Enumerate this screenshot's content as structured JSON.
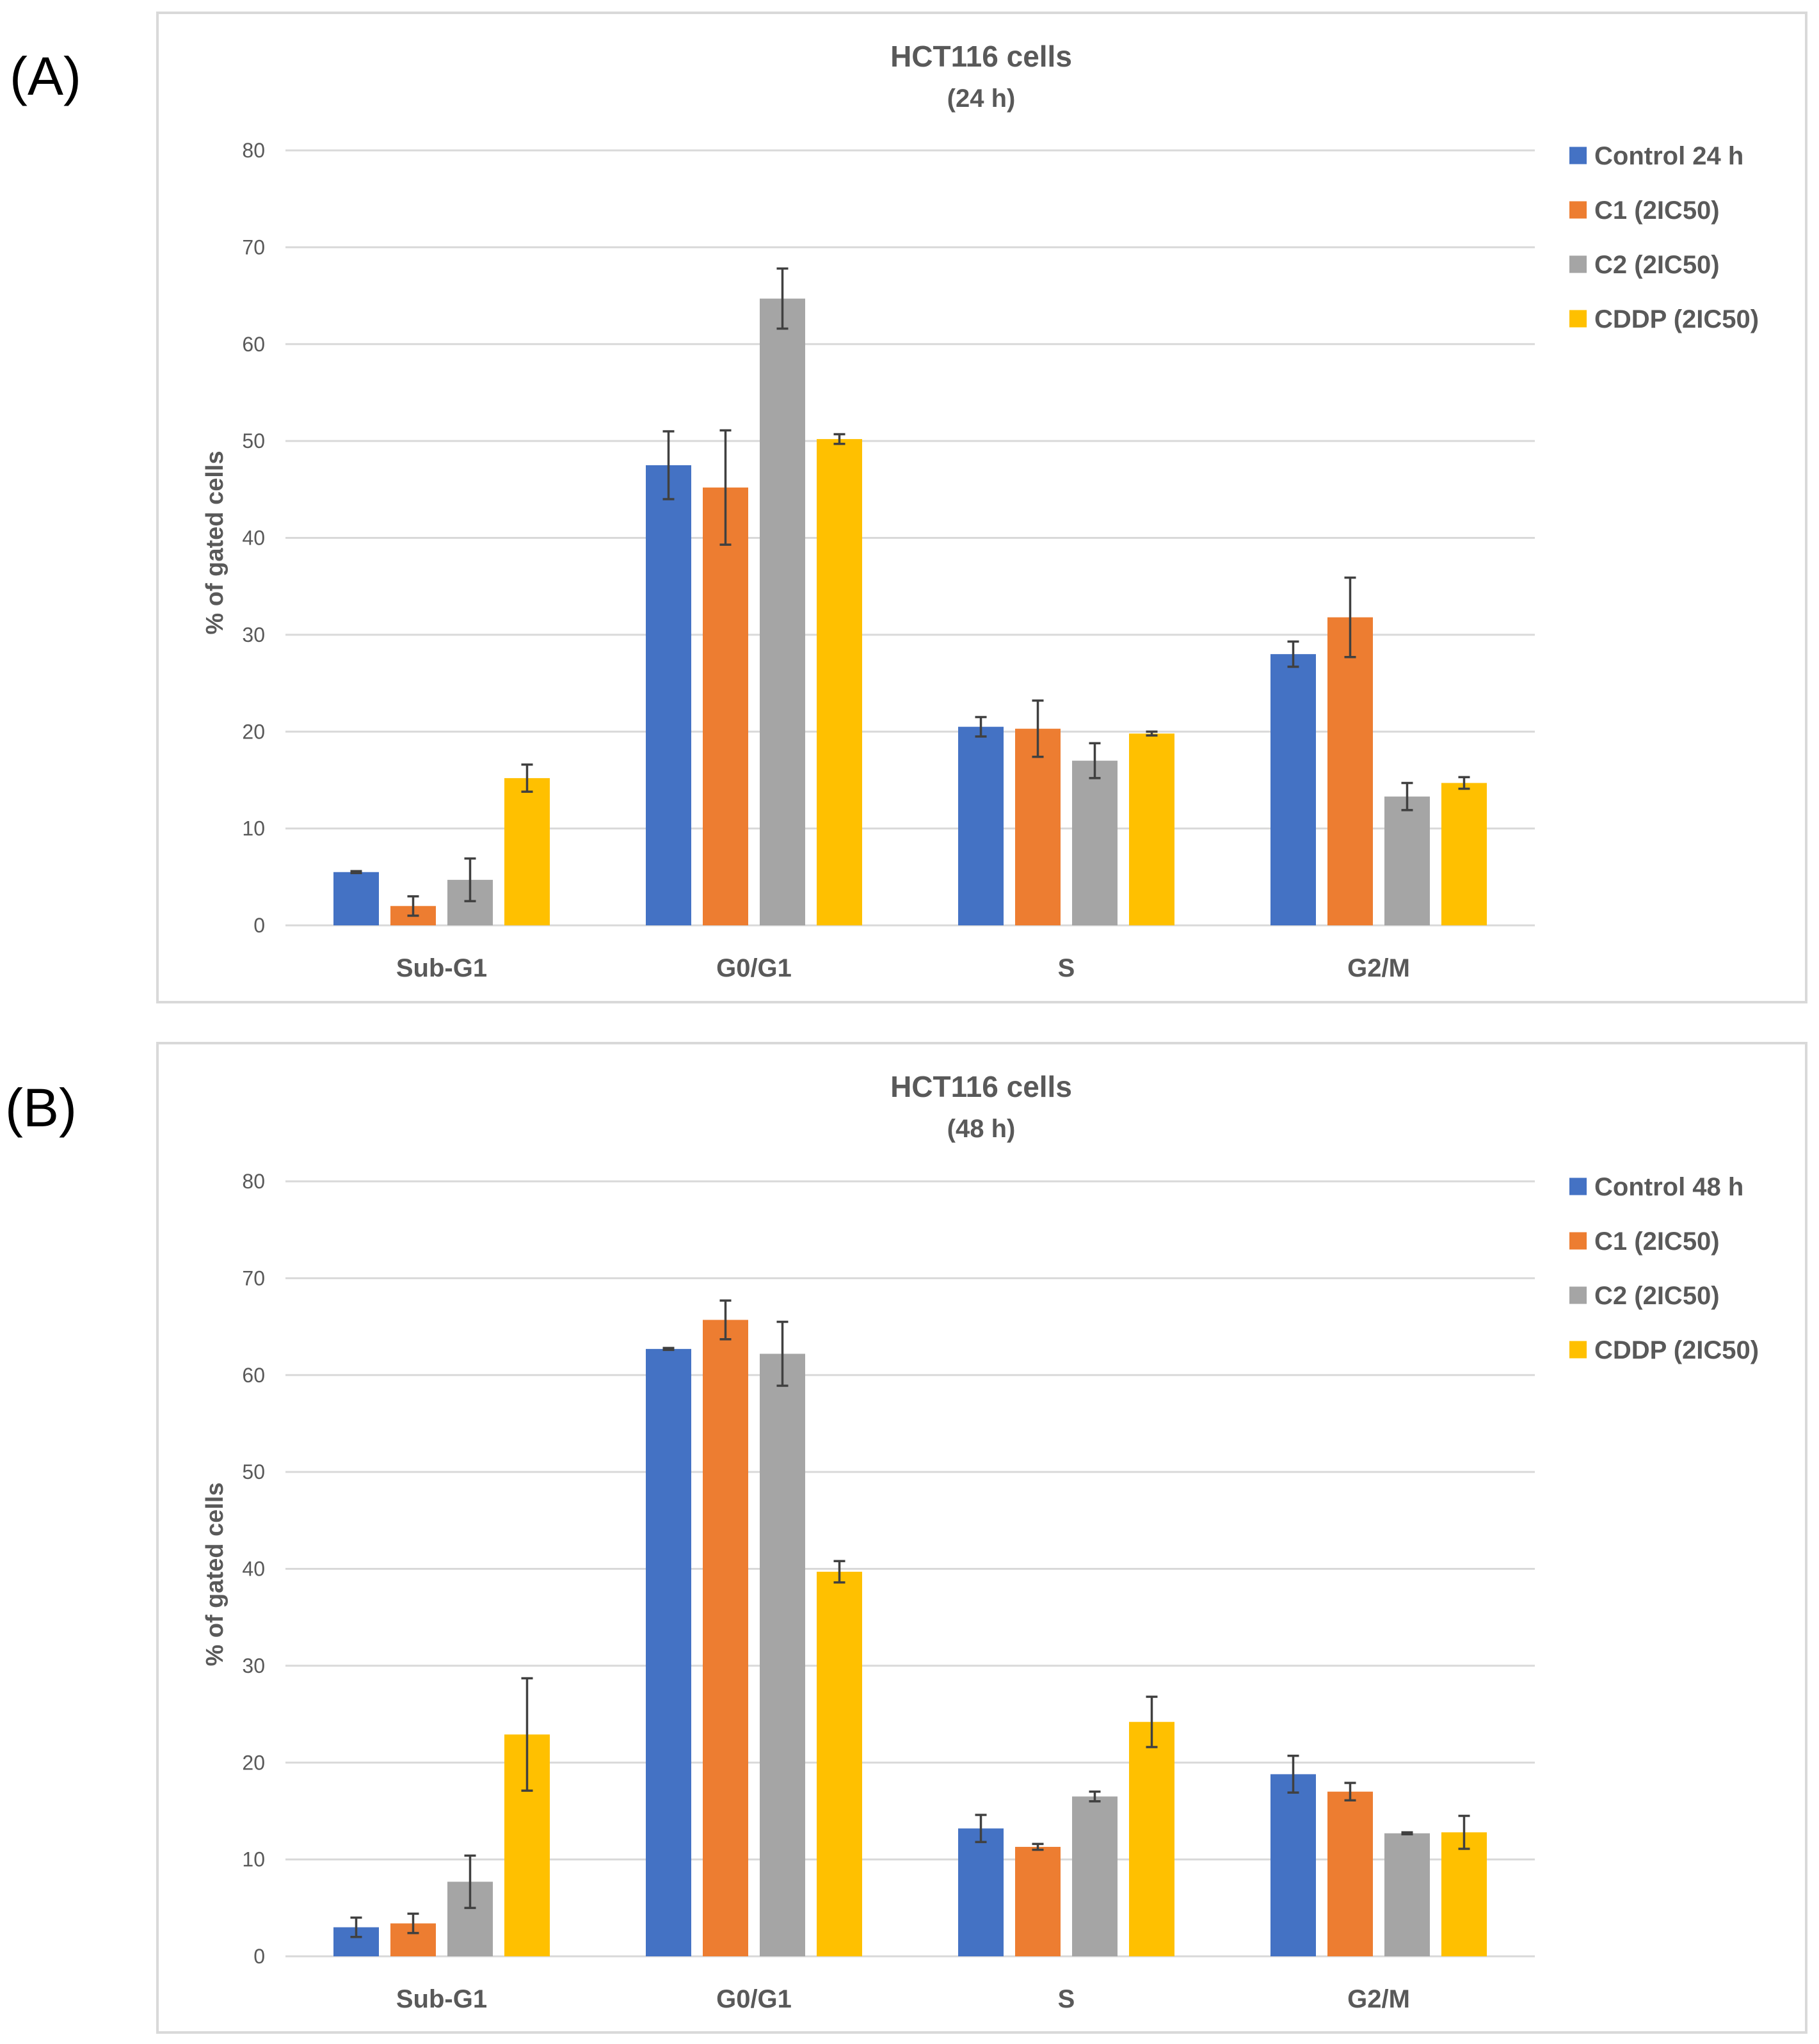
{
  "panels": [
    {
      "label": "(A)"
    },
    {
      "label": "(B)"
    }
  ],
  "chart_data": [
    {
      "type": "bar",
      "title": "HCT116 cells",
      "subtitle": "(24 h)",
      "xlabel": "",
      "ylabel": "% of gated cells",
      "ylim": [
        0,
        80
      ],
      "yticks": [
        0,
        10,
        20,
        30,
        40,
        50,
        60,
        70,
        80
      ],
      "grid": true,
      "legend_position": "right",
      "categories": [
        "Sub-G1",
        "G0/G1",
        "S",
        "G2/M"
      ],
      "series": [
        {
          "name": "Control 24 h",
          "color": "#4472c4",
          "values": [
            5.5,
            47.5,
            20.5,
            28.0
          ],
          "errors": [
            0.1,
            3.5,
            1.0,
            1.3
          ]
        },
        {
          "name": "C1 (2IC50)",
          "color": "#ed7d31",
          "values": [
            2.0,
            45.2,
            20.3,
            31.8
          ],
          "errors": [
            1.0,
            5.9,
            2.9,
            4.1
          ]
        },
        {
          "name": "C2 (2IC50)",
          "color": "#a5a5a5",
          "values": [
            4.7,
            64.7,
            17.0,
            13.3
          ],
          "errors": [
            2.2,
            3.1,
            1.8,
            1.4
          ]
        },
        {
          "name": "CDDP (2IC50)",
          "color": "#ffc000",
          "values": [
            15.2,
            50.2,
            19.8,
            14.7
          ],
          "errors": [
            1.4,
            0.5,
            0.2,
            0.6
          ]
        }
      ]
    },
    {
      "type": "bar",
      "title": "HCT116 cells",
      "subtitle": "(48 h)",
      "xlabel": "",
      "ylabel": "% of gated cells",
      "ylim": [
        0,
        80
      ],
      "yticks": [
        0,
        10,
        20,
        30,
        40,
        50,
        60,
        70,
        80
      ],
      "grid": true,
      "legend_position": "right",
      "categories": [
        "Sub-G1",
        "G0/G1",
        "S",
        "G2/M"
      ],
      "series": [
        {
          "name": "Control 48 h",
          "color": "#4472c4",
          "values": [
            3.0,
            62.7,
            13.2,
            18.8
          ],
          "errors": [
            1.0,
            0.1,
            1.4,
            1.9
          ]
        },
        {
          "name": "C1 (2IC50)",
          "color": "#ed7d31",
          "values": [
            3.4,
            65.7,
            11.3,
            17.0
          ],
          "errors": [
            1.0,
            2.0,
            0.3,
            0.9
          ]
        },
        {
          "name": "C2 (2IC50)",
          "color": "#a5a5a5",
          "values": [
            7.7,
            62.2,
            16.5,
            12.7
          ],
          "errors": [
            2.7,
            3.3,
            0.5,
            0.1
          ]
        },
        {
          "name": "CDDP (2IC50)",
          "color": "#ffc000",
          "values": [
            22.9,
            39.7,
            24.2,
            12.8
          ],
          "errors": [
            5.8,
            1.1,
            2.6,
            1.7
          ]
        }
      ]
    }
  ]
}
